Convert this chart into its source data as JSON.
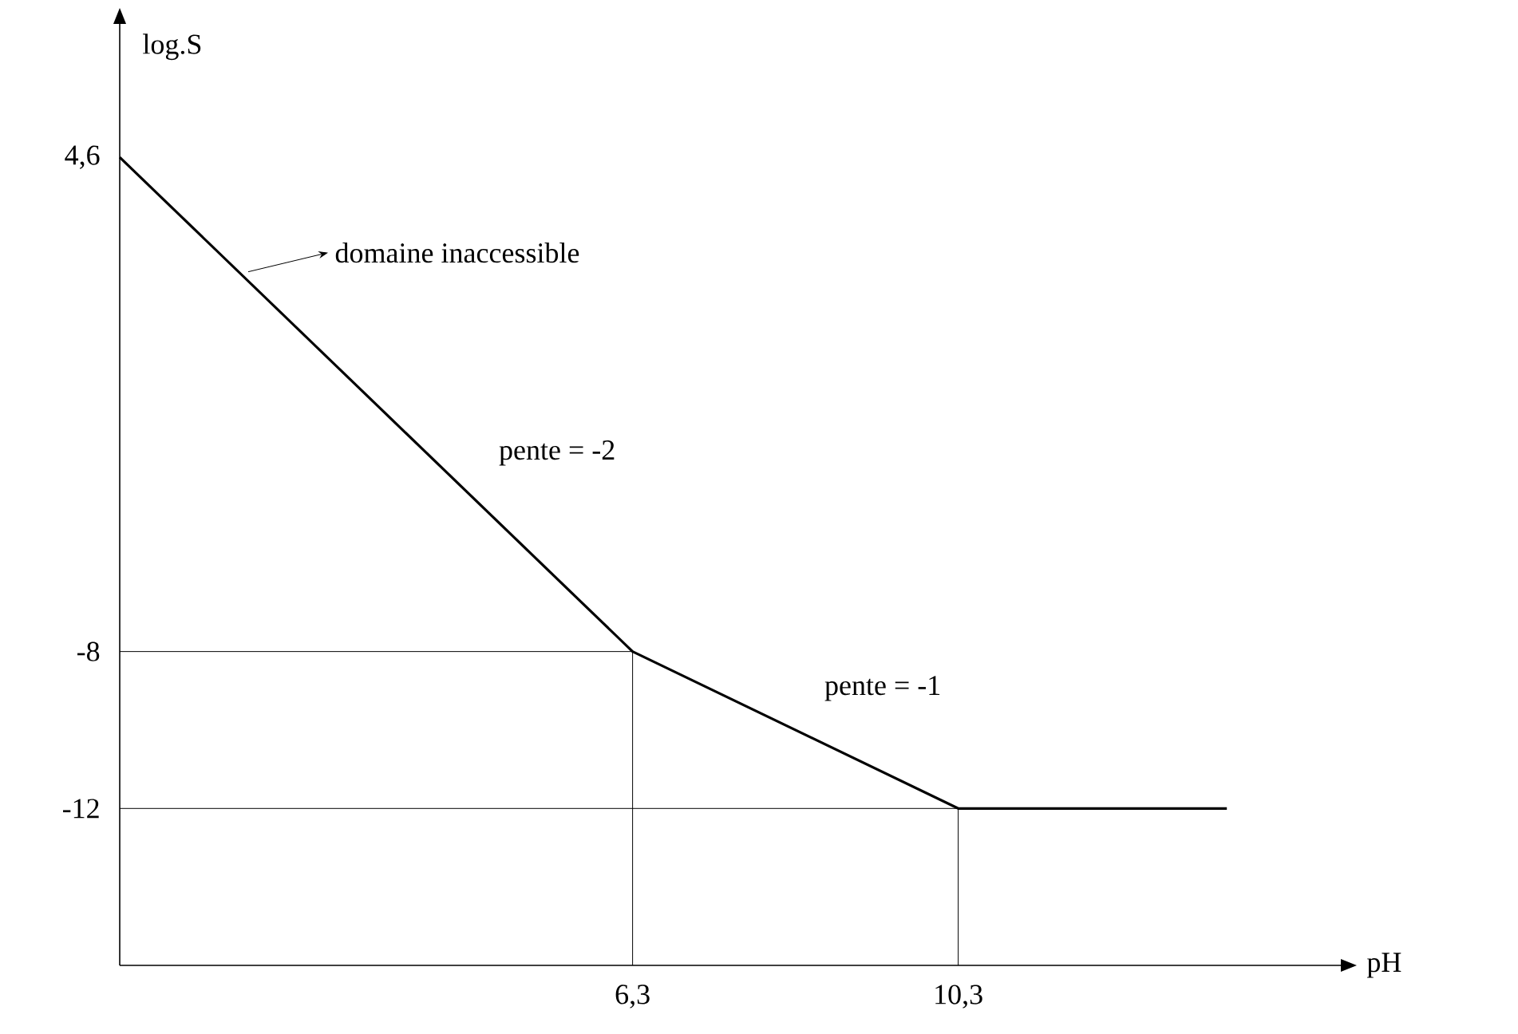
{
  "chart_data": {
    "type": "line",
    "xlabel": "pH",
    "ylabel": "log.S",
    "x": [
      0,
      6.3,
      10.3,
      13.6
    ],
    "values": [
      4.6,
      -8,
      -12,
      -12
    ],
    "color": "#000000",
    "line_style": "solid",
    "marker": "none",
    "xlim": [
      0,
      15
    ],
    "ylim": [
      -16,
      8
    ],
    "xticks": [
      {
        "value": 6.3,
        "label": "6,3"
      },
      {
        "value": 10.3,
        "label": "10,3"
      }
    ],
    "yticks": [
      {
        "value": 4.6,
        "label": "4,6"
      },
      -8,
      -12
    ],
    "ref_lines": [
      {
        "axis": "y",
        "value": -8,
        "color": "#000000"
      },
      {
        "axis": "y",
        "value": -12,
        "color": "#000000"
      },
      {
        "axis": "x",
        "value": 6.3,
        "color": "#000000"
      },
      {
        "axis": "x",
        "value": 10.3,
        "color": "#000000"
      }
    ],
    "annotations": [
      {
        "text": "domaine inaccessible",
        "x": 1.5,
        "y": 1.6
      },
      {
        "text": "pente = -2",
        "x": 4.3,
        "y": -4
      },
      {
        "text": "pente = -1",
        "x": 8.3,
        "y": -10
      }
    ]
  }
}
